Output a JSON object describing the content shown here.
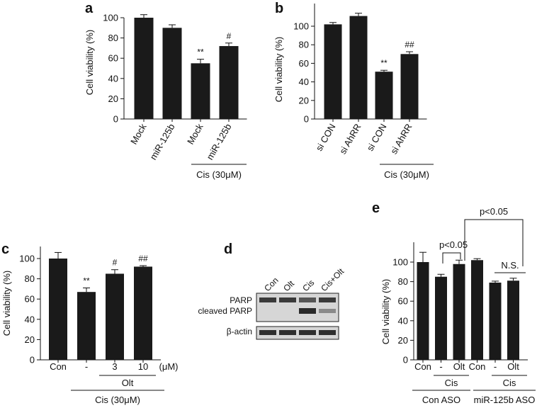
{
  "figure": {
    "panels": [
      "a",
      "b",
      "c",
      "d",
      "e"
    ]
  },
  "colors": {
    "bar": "#1a1a1a",
    "axis": "#111111",
    "blot_bg": "#d9d9d9"
  },
  "chart_data": [
    {
      "panel": "a",
      "type": "bar",
      "ylabel": "Cell viability (%)",
      "ylim": [
        0,
        100
      ],
      "yticks": [
        0,
        20,
        40,
        60,
        80,
        100
      ],
      "categories": [
        "Mock",
        "miR-125b",
        "Mock",
        "miR-125b"
      ],
      "values": [
        100,
        90,
        55,
        72
      ],
      "errors": [
        3,
        3,
        4,
        3
      ],
      "annotations": [
        "",
        "",
        "**",
        "#"
      ],
      "group_label": "Cis (30μM)",
      "group_span": [
        2,
        3
      ]
    },
    {
      "panel": "b",
      "type": "bar",
      "ylabel": "Cell viability (%)",
      "ylim": [
        0,
        120
      ],
      "yticks": [
        0,
        20,
        40,
        60,
        80,
        100
      ],
      "categories": [
        "si CON",
        "si AhRR",
        "si CON",
        "si AhRR"
      ],
      "values": [
        102,
        111,
        51,
        70
      ],
      "errors": [
        2,
        3,
        1.5,
        2.5
      ],
      "annotations": [
        "",
        "",
        "**",
        "##"
      ],
      "group_label": "Cis (30μM)",
      "group_span": [
        2,
        3
      ]
    },
    {
      "panel": "c",
      "type": "bar",
      "ylabel": "Cell viability (%)",
      "ylim": [
        0,
        110
      ],
      "yticks": [
        0,
        20,
        40,
        60,
        80,
        100
      ],
      "categories": [
        "Con",
        "-",
        "3",
        "10"
      ],
      "unit": "(μM)",
      "values": [
        100,
        67,
        85,
        92
      ],
      "errors": [
        6,
        4,
        4,
        1
      ],
      "annotations": [
        "",
        "**",
        "#",
        "##"
      ],
      "olt_label": "Olt",
      "group_label": "Cis (30μM)"
    },
    {
      "panel": "e",
      "type": "bar",
      "ylabel": "Cell viability (%)",
      "ylim": [
        0,
        120
      ],
      "yticks": [
        0,
        20,
        40,
        60,
        80,
        100
      ],
      "categories": [
        "Con",
        "-",
        "Olt",
        "Con",
        "-",
        "Olt"
      ],
      "values": [
        100,
        85,
        98,
        102,
        79,
        81
      ],
      "errors": [
        10,
        2.5,
        4,
        1.5,
        1.5,
        2.5
      ],
      "cis_label": "Cis",
      "group_labels": [
        "Con ASO",
        "miR-125b ASO"
      ],
      "brackets": [
        "p<0.05",
        "p<0.05",
        "N.S."
      ]
    }
  ],
  "blot": {
    "panel": "d",
    "lanes": [
      "Con",
      "Olt",
      "Cis",
      "Cis+Olt"
    ],
    "rows": [
      "PARP",
      "cleaved PARP",
      "β-actin"
    ]
  }
}
